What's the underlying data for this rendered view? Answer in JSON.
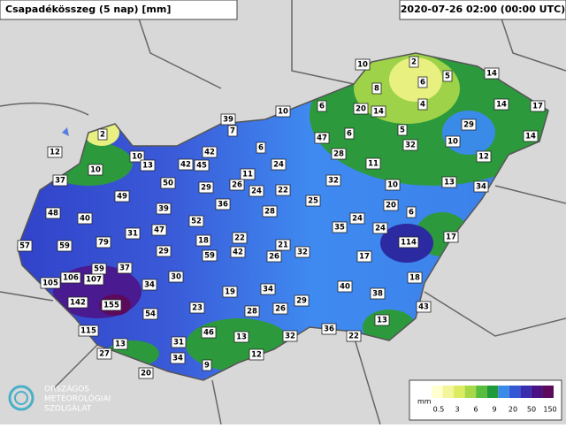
{
  "header": {
    "title": "Csapadékösszeg (5 nap) [mm]",
    "timestamp": "2020-07-26 02:00 (00:00 UTC)"
  },
  "stations": [
    2,
    10,
    5,
    14,
    6,
    8,
    4,
    14,
    17,
    10,
    6,
    20,
    14,
    39,
    7,
    5,
    29,
    2,
    47,
    6,
    14,
    6,
    32,
    10,
    12,
    42,
    28,
    10,
    13,
    42,
    45,
    24,
    11,
    12,
    10,
    11,
    37,
    50,
    29,
    26,
    24,
    22,
    32,
    13,
    34,
    10,
    25,
    49,
    36,
    20,
    6,
    28,
    39,
    48,
    40,
    52,
    24,
    24,
    35,
    31,
    47,
    79,
    18,
    22,
    21,
    114,
    17,
    57,
    59,
    29,
    59,
    42,
    26,
    32,
    17,
    59,
    37,
    105,
    106,
    107,
    30,
    34,
    18,
    19,
    34,
    40,
    38,
    142,
    155,
    29,
    43,
    23,
    26,
    28,
    54,
    13,
    115,
    46,
    36,
    22,
    32,
    13,
    13,
    31,
    27,
    12,
    34,
    9,
    20
  ],
  "legend": {
    "unit": "mm",
    "labels": [
      "0.5",
      "3",
      "6",
      "9",
      "20",
      "50",
      "150"
    ],
    "colors": [
      "#ffffd0",
      "#f4f49a",
      "#dcec60",
      "#a8d848",
      "#58bc3c",
      "#1f9a3a",
      "#3a8ae8",
      "#3458d4",
      "#3a2eb0",
      "#4a1282",
      "#5c0a5c"
    ]
  },
  "logo": {
    "lines": [
      "ORSZÁGOS",
      "METEOROLÓGIAI",
      "SZOLGÁLAT"
    ]
  }
}
